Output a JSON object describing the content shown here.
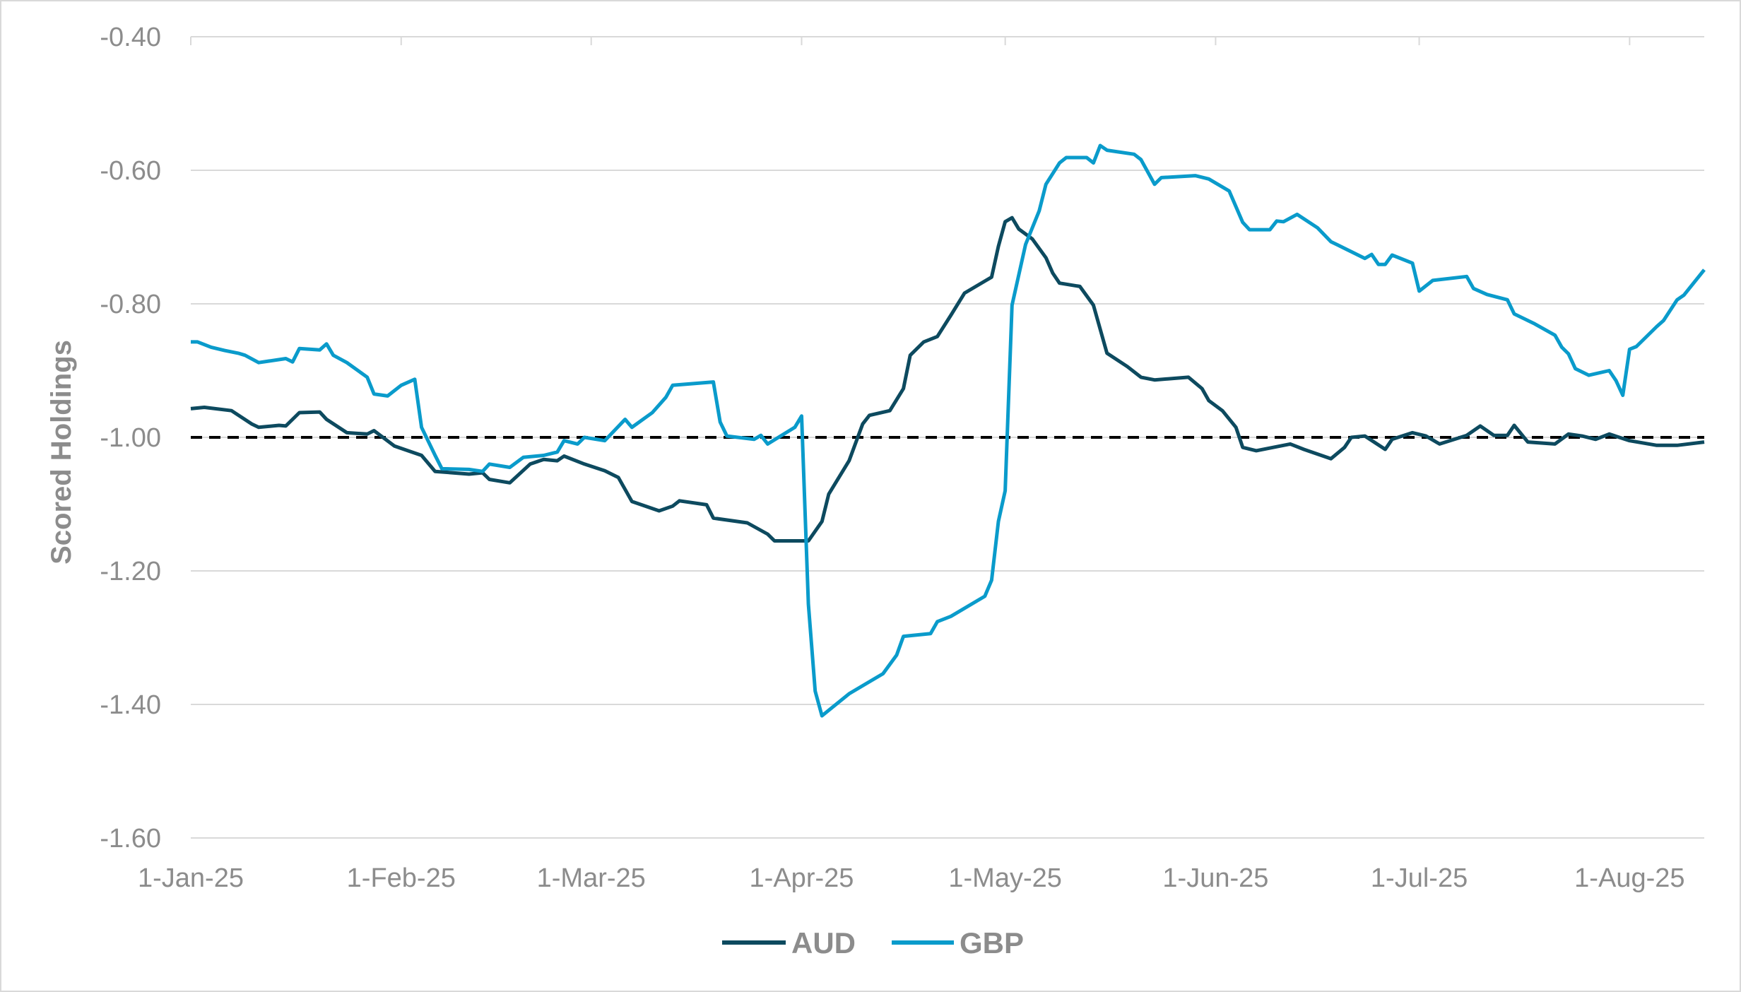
{
  "chart_data": {
    "type": "line",
    "title": "",
    "xlabel": "",
    "ylabel": "Scored Holdings",
    "ylim": [
      -1.6,
      -0.4
    ],
    "yticks": [
      "-0.40",
      "-0.60",
      "-0.80",
      "-1.00",
      "-1.20",
      "-1.40",
      "-1.60"
    ],
    "ytick_values": [
      -0.4,
      -0.6,
      -0.8,
      -1.0,
      -1.2,
      -1.4,
      -1.6
    ],
    "xlim": [
      "2025-01-01",
      "2025-08-12"
    ],
    "xticks": [
      "1-Jan-25",
      "1-Feb-25",
      "1-Mar-25",
      "1-Apr-25",
      "1-May-25",
      "1-Jun-25",
      "1-Jul-25",
      "1-Aug-25"
    ],
    "xtick_dates": [
      "2025-01-01",
      "2025-02-01",
      "2025-03-01",
      "2025-04-01",
      "2025-05-01",
      "2025-06-01",
      "2025-07-01",
      "2025-08-01"
    ],
    "grid": "horizontal",
    "legend_position": "bottom",
    "reference_line": {
      "value": -1.0,
      "style": "dashed",
      "color": "#000000"
    },
    "series": [
      {
        "name": "AUD",
        "color": "#0d4a5f",
        "points": [
          [
            "2025-01-01",
            -0.957
          ],
          [
            "2025-01-03",
            -0.955
          ],
          [
            "2025-01-07",
            -0.96
          ],
          [
            "2025-01-10",
            -0.98
          ],
          [
            "2025-01-11",
            -0.985
          ],
          [
            "2025-01-14",
            -0.982
          ],
          [
            "2025-01-15",
            -0.983
          ],
          [
            "2025-01-17",
            -0.963
          ],
          [
            "2025-01-20",
            -0.962
          ],
          [
            "2025-01-21",
            -0.973
          ],
          [
            "2025-01-24",
            -0.993
          ],
          [
            "2025-01-27",
            -0.995
          ],
          [
            "2025-01-28",
            -0.99
          ],
          [
            "2025-01-31",
            -1.013
          ],
          [
            "2025-02-04",
            -1.027
          ],
          [
            "2025-02-06",
            -1.051
          ],
          [
            "2025-02-11",
            -1.055
          ],
          [
            "2025-02-13",
            -1.053
          ],
          [
            "2025-02-14",
            -1.063
          ],
          [
            "2025-02-17",
            -1.068
          ],
          [
            "2025-02-20",
            -1.04
          ],
          [
            "2025-02-22",
            -1.033
          ],
          [
            "2025-02-24",
            -1.035
          ],
          [
            "2025-02-25",
            -1.028
          ],
          [
            "2025-02-28",
            -1.04
          ],
          [
            "2025-03-03",
            -1.05
          ],
          [
            "2025-03-05",
            -1.06
          ],
          [
            "2025-03-07",
            -1.096
          ],
          [
            "2025-03-11",
            -1.11
          ],
          [
            "2025-03-13",
            -1.103
          ],
          [
            "2025-03-14",
            -1.095
          ],
          [
            "2025-03-18",
            -1.101
          ],
          [
            "2025-03-19",
            -1.121
          ],
          [
            "2025-03-24",
            -1.128
          ],
          [
            "2025-03-27",
            -1.145
          ],
          [
            "2025-03-28",
            -1.155
          ],
          [
            "2025-04-01",
            -1.155
          ],
          [
            "2025-04-02",
            -1.155
          ],
          [
            "2025-04-04",
            -1.126
          ],
          [
            "2025-04-05",
            -1.085
          ],
          [
            "2025-04-08",
            -1.035
          ],
          [
            "2025-04-10",
            -0.98
          ],
          [
            "2025-04-11",
            -0.967
          ],
          [
            "2025-04-14",
            -0.96
          ],
          [
            "2025-04-16",
            -0.927
          ],
          [
            "2025-04-17",
            -0.877
          ],
          [
            "2025-04-19",
            -0.857
          ],
          [
            "2025-04-21",
            -0.849
          ],
          [
            "2025-04-23",
            -0.817
          ],
          [
            "2025-04-25",
            -0.784
          ],
          [
            "2025-04-29",
            -0.76
          ],
          [
            "2025-04-30",
            -0.714
          ],
          [
            "2025-05-01",
            -0.677
          ],
          [
            "2025-05-02",
            -0.671
          ],
          [
            "2025-05-03",
            -0.688
          ],
          [
            "2025-05-05",
            -0.703
          ],
          [
            "2025-05-07",
            -0.731
          ],
          [
            "2025-05-08",
            -0.754
          ],
          [
            "2025-05-09",
            -0.769
          ],
          [
            "2025-05-12",
            -0.774
          ],
          [
            "2025-05-14",
            -0.802
          ],
          [
            "2025-05-16",
            -0.874
          ],
          [
            "2025-05-19",
            -0.894
          ],
          [
            "2025-05-21",
            -0.91
          ],
          [
            "2025-05-23",
            -0.914
          ],
          [
            "2025-05-28",
            -0.91
          ],
          [
            "2025-05-30",
            -0.927
          ],
          [
            "2025-05-31",
            -0.945
          ],
          [
            "2025-06-02",
            -0.96
          ],
          [
            "2025-06-04",
            -0.985
          ],
          [
            "2025-06-05",
            -1.015
          ],
          [
            "2025-06-07",
            -1.02
          ],
          [
            "2025-06-12",
            -1.01
          ],
          [
            "2025-06-14",
            -1.018
          ],
          [
            "2025-06-18",
            -1.032
          ],
          [
            "2025-06-20",
            -1.015
          ],
          [
            "2025-06-21",
            -1.0
          ],
          [
            "2025-06-23",
            -0.998
          ],
          [
            "2025-06-26",
            -1.018
          ],
          [
            "2025-06-27",
            -1.003
          ],
          [
            "2025-06-30",
            -0.993
          ],
          [
            "2025-07-02",
            -0.998
          ],
          [
            "2025-07-04",
            -1.01
          ],
          [
            "2025-07-08",
            -0.997
          ],
          [
            "2025-07-10",
            -0.983
          ],
          [
            "2025-07-12",
            -0.997
          ],
          [
            "2025-07-14",
            -0.997
          ],
          [
            "2025-07-15",
            -0.982
          ],
          [
            "2025-07-17",
            -1.007
          ],
          [
            "2025-07-21",
            -1.01
          ],
          [
            "2025-07-23",
            -0.995
          ],
          [
            "2025-07-25",
            -0.998
          ],
          [
            "2025-07-27",
            -1.003
          ],
          [
            "2025-07-29",
            -0.995
          ],
          [
            "2025-08-01",
            -1.005
          ],
          [
            "2025-08-05",
            -1.012
          ],
          [
            "2025-08-08",
            -1.012
          ],
          [
            "2025-08-12",
            -1.007
          ]
        ]
      },
      {
        "name": "GBP",
        "color": "#0a9bcb",
        "points": [
          [
            "2025-01-01",
            -0.857
          ],
          [
            "2025-01-02",
            -0.857
          ],
          [
            "2025-01-04",
            -0.865
          ],
          [
            "2025-01-06",
            -0.87
          ],
          [
            "2025-01-08",
            -0.874
          ],
          [
            "2025-01-09",
            -0.877
          ],
          [
            "2025-01-11",
            -0.888
          ],
          [
            "2025-01-15",
            -0.882
          ],
          [
            "2025-01-16",
            -0.887
          ],
          [
            "2025-01-17",
            -0.867
          ],
          [
            "2025-01-20",
            -0.869
          ],
          [
            "2025-01-21",
            -0.86
          ],
          [
            "2025-01-22",
            -0.877
          ],
          [
            "2025-01-24",
            -0.888
          ],
          [
            "2025-01-27",
            -0.91
          ],
          [
            "2025-01-28",
            -0.935
          ],
          [
            "2025-01-30",
            -0.938
          ],
          [
            "2025-02-01",
            -0.922
          ],
          [
            "2025-02-03",
            -0.913
          ],
          [
            "2025-02-04",
            -0.985
          ],
          [
            "2025-02-06",
            -1.027
          ],
          [
            "2025-02-07",
            -1.047
          ],
          [
            "2025-02-11",
            -1.048
          ],
          [
            "2025-02-13",
            -1.051
          ],
          [
            "2025-02-14",
            -1.04
          ],
          [
            "2025-02-17",
            -1.045
          ],
          [
            "2025-02-19",
            -1.03
          ],
          [
            "2025-02-22",
            -1.027
          ],
          [
            "2025-02-24",
            -1.022
          ],
          [
            "2025-02-25",
            -1.005
          ],
          [
            "2025-02-27",
            -1.01
          ],
          [
            "2025-02-28",
            -1.0
          ],
          [
            "2025-03-03",
            -1.005
          ],
          [
            "2025-03-06",
            -0.973
          ],
          [
            "2025-03-07",
            -0.985
          ],
          [
            "2025-03-10",
            -0.963
          ],
          [
            "2025-03-12",
            -0.94
          ],
          [
            "2025-03-13",
            -0.922
          ],
          [
            "2025-03-19",
            -0.917
          ],
          [
            "2025-03-20",
            -0.977
          ],
          [
            "2025-03-21",
            -0.998
          ],
          [
            "2025-03-25",
            -1.003
          ],
          [
            "2025-03-26",
            -0.997
          ],
          [
            "2025-03-27",
            -1.01
          ],
          [
            "2025-03-31",
            -0.985
          ],
          [
            "2025-04-01",
            -0.968
          ],
          [
            "2025-04-02",
            -1.25
          ],
          [
            "2025-04-03",
            -1.38
          ],
          [
            "2025-04-04",
            -1.417
          ],
          [
            "2025-04-08",
            -1.384
          ],
          [
            "2025-04-10",
            -1.372
          ],
          [
            "2025-04-13",
            -1.354
          ],
          [
            "2025-04-15",
            -1.326
          ],
          [
            "2025-04-16",
            -1.298
          ],
          [
            "2025-04-20",
            -1.294
          ],
          [
            "2025-04-21",
            -1.276
          ],
          [
            "2025-04-23",
            -1.268
          ],
          [
            "2025-04-28",
            -1.238
          ],
          [
            "2025-04-29",
            -1.214
          ],
          [
            "2025-04-30",
            -1.126
          ],
          [
            "2025-05-01",
            -1.08
          ],
          [
            "2025-05-02",
            -0.802
          ],
          [
            "2025-05-04",
            -0.711
          ],
          [
            "2025-05-06",
            -0.661
          ],
          [
            "2025-05-07",
            -0.621
          ],
          [
            "2025-05-09",
            -0.589
          ],
          [
            "2025-05-10",
            -0.581
          ],
          [
            "2025-05-13",
            -0.581
          ],
          [
            "2025-05-14",
            -0.589
          ],
          [
            "2025-05-15",
            -0.563
          ],
          [
            "2025-05-16",
            -0.57
          ],
          [
            "2025-05-20",
            -0.576
          ],
          [
            "2025-05-21",
            -0.584
          ],
          [
            "2025-05-23",
            -0.621
          ],
          [
            "2025-05-24",
            -0.611
          ],
          [
            "2025-05-29",
            -0.608
          ],
          [
            "2025-05-31",
            -0.613
          ],
          [
            "2025-06-03",
            -0.631
          ],
          [
            "2025-06-05",
            -0.678
          ],
          [
            "2025-06-06",
            -0.689
          ],
          [
            "2025-06-09",
            -0.689
          ],
          [
            "2025-06-10",
            -0.676
          ],
          [
            "2025-06-11",
            -0.677
          ],
          [
            "2025-06-13",
            -0.666
          ],
          [
            "2025-06-16",
            -0.686
          ],
          [
            "2025-06-18",
            -0.707
          ],
          [
            "2025-06-19",
            -0.712
          ],
          [
            "2025-06-21",
            -0.722
          ],
          [
            "2025-06-23",
            -0.732
          ],
          [
            "2025-06-24",
            -0.726
          ],
          [
            "2025-06-25",
            -0.741
          ],
          [
            "2025-06-26",
            -0.741
          ],
          [
            "2025-06-27",
            -0.727
          ],
          [
            "2025-06-30",
            -0.739
          ],
          [
            "2025-07-01",
            -0.781
          ],
          [
            "2025-07-03",
            -0.765
          ],
          [
            "2025-07-08",
            -0.759
          ],
          [
            "2025-07-09",
            -0.777
          ],
          [
            "2025-07-11",
            -0.786
          ],
          [
            "2025-07-14",
            -0.794
          ],
          [
            "2025-07-15",
            -0.815
          ],
          [
            "2025-07-17",
            -0.825
          ],
          [
            "2025-07-18",
            -0.83
          ],
          [
            "2025-07-21",
            -0.847
          ],
          [
            "2025-07-22",
            -0.865
          ],
          [
            "2025-07-23",
            -0.875
          ],
          [
            "2025-07-24",
            -0.897
          ],
          [
            "2025-07-26",
            -0.907
          ],
          [
            "2025-07-29",
            -0.9
          ],
          [
            "2025-07-30",
            -0.915
          ],
          [
            "2025-07-31",
            -0.937
          ],
          [
            "2025-08-01",
            -0.868
          ],
          [
            "2025-08-02",
            -0.864
          ],
          [
            "2025-08-05",
            -0.834
          ],
          [
            "2025-08-06",
            -0.825
          ],
          [
            "2025-08-08",
            -0.794
          ],
          [
            "2025-08-09",
            -0.787
          ],
          [
            "2025-08-12",
            -0.749
          ]
        ]
      }
    ]
  }
}
